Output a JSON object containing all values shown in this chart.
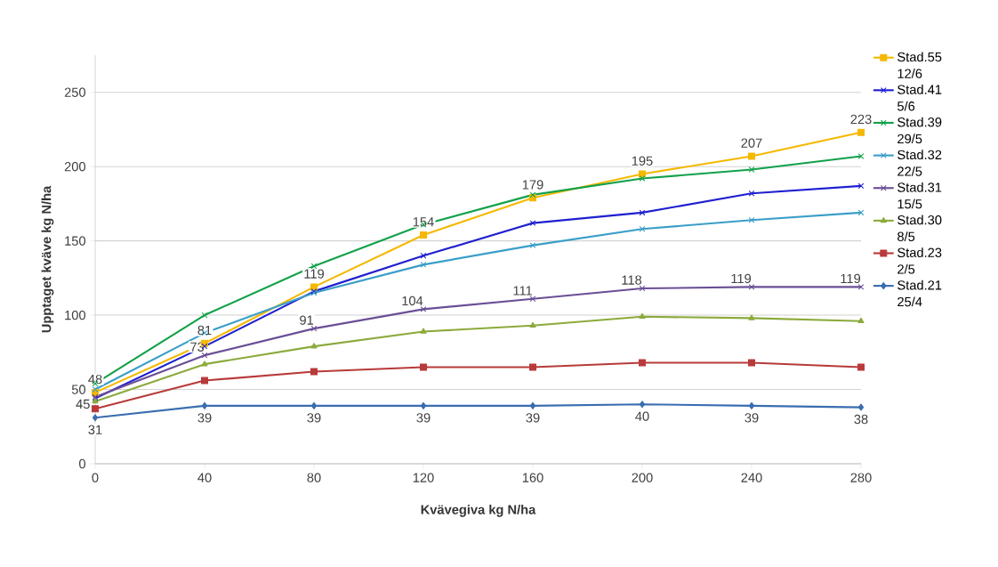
{
  "chart_data": {
    "type": "line",
    "xlabel": "Kvävegiva kg N/ha",
    "ylabel": "Upptaget kväve kg N/ha",
    "x": [
      0,
      40,
      80,
      120,
      160,
      200,
      240,
      280
    ],
    "xlim": [
      0,
      280
    ],
    "xticks": [
      0,
      40,
      80,
      120,
      160,
      200,
      240,
      280
    ],
    "ylim": [
      0,
      275
    ],
    "yticks": [
      0,
      50,
      100,
      150,
      200,
      250
    ],
    "grid": "y",
    "legend": "right",
    "series": [
      {
        "name": "Stad.55 12/6",
        "color": "#f5b800",
        "marker": "square",
        "values": [
          48,
          81,
          119,
          154,
          179,
          195,
          207,
          223
        ],
        "value_labels": [
          "48",
          "81",
          "119",
          "154",
          "179",
          "195",
          "207",
          "223"
        ]
      },
      {
        "name": "Stad.41 5/6",
        "color": "#1f1fd0",
        "marker": "cross",
        "values": [
          44,
          79,
          116,
          140,
          162,
          169,
          182,
          187
        ]
      },
      {
        "name": "Stad.39 29/5",
        "color": "#12a14a",
        "marker": "cross",
        "values": [
          54,
          100,
          133,
          161,
          181,
          192,
          198,
          207
        ]
      },
      {
        "name": "Stad.32 22/5",
        "color": "#3a9ec8",
        "marker": "cross",
        "values": [
          50,
          88,
          115,
          134,
          147,
          158,
          164,
          169
        ]
      },
      {
        "name": "Stad.31 15/5",
        "color": "#6a4f96",
        "marker": "cross",
        "values": [
          45,
          73,
          91,
          104,
          111,
          118,
          119,
          119
        ],
        "value_labels": [
          "45",
          "73",
          "91",
          "104",
          "111",
          "118",
          "119",
          "119"
        ]
      },
      {
        "name": "Stad.30 8/5",
        "color": "#8caa3c",
        "marker": "triangle",
        "values": [
          42,
          67,
          79,
          89,
          93,
          99,
          98,
          96
        ]
      },
      {
        "name": "Stad.23 2/5",
        "color": "#b83a3a",
        "marker": "square",
        "values": [
          37,
          56,
          62,
          65,
          65,
          68,
          68,
          65
        ]
      },
      {
        "name": "Stad.21 25/4",
        "color": "#3a6db0",
        "marker": "diamond",
        "values": [
          31,
          39,
          39,
          39,
          39,
          40,
          39,
          38
        ],
        "value_labels": [
          "31",
          "39",
          "39",
          "39",
          "39",
          "40",
          "39",
          "38"
        ]
      }
    ]
  }
}
